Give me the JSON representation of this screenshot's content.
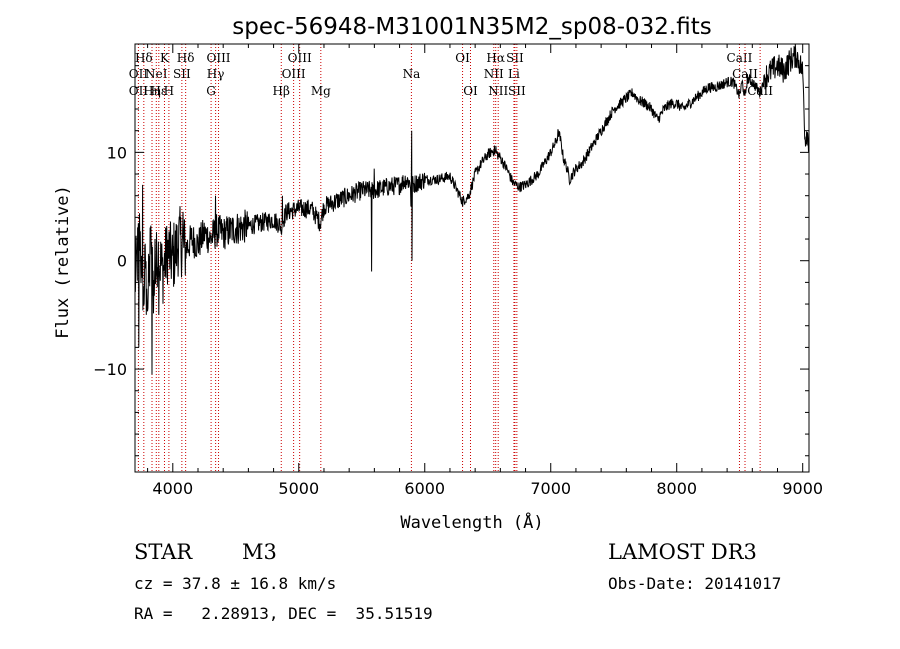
{
  "chart_data": {
    "type": "line",
    "title": "spec-56948-M31001N35M2_sp08-032.fits",
    "xlabel": "Wavelength (Å)",
    "ylabel": "Flux (relative)",
    "xlim": [
      3700,
      9050
    ],
    "ylim": [
      -19.5,
      20
    ],
    "x_ticks": [
      4000,
      5000,
      6000,
      7000,
      8000,
      9000
    ],
    "x_tick_labels": [
      "4000",
      "5000",
      "6000",
      "7000",
      "8000",
      "9000"
    ],
    "y_ticks": [
      -10,
      0,
      10
    ],
    "y_tick_labels": [
      "−10",
      "0",
      "10"
    ],
    "line_color": "#000000",
    "marker_color": "#cc0000",
    "spectrum_anchors": [
      [
        3700,
        -2
      ],
      [
        3740,
        3
      ],
      [
        3760,
        -5
      ],
      [
        3790,
        1
      ],
      [
        3800,
        -4
      ],
      [
        3830,
        2
      ],
      [
        3850,
        -3
      ],
      [
        3880,
        1
      ],
      [
        3920,
        -1
      ],
      [
        3960,
        1
      ],
      [
        4000,
        0
      ],
      [
        4050,
        2
      ],
      [
        4100,
        1
      ],
      [
        4150,
        2
      ],
      [
        4200,
        1.5
      ],
      [
        4250,
        2.5
      ],
      [
        4300,
        2
      ],
      [
        4350,
        2.8
      ],
      [
        4400,
        2.5
      ],
      [
        4500,
        3
      ],
      [
        4600,
        3.2
      ],
      [
        4700,
        3.5
      ],
      [
        4800,
        3.8
      ],
      [
        4860,
        3.2
      ],
      [
        4900,
        4.5
      ],
      [
        5000,
        4.8
      ],
      [
        5100,
        4.8
      ],
      [
        5170,
        3.5
      ],
      [
        5200,
        5
      ],
      [
        5300,
        5.5
      ],
      [
        5400,
        6
      ],
      [
        5500,
        6.5
      ],
      [
        5600,
        6.5
      ],
      [
        5700,
        6.8
      ],
      [
        5800,
        7
      ],
      [
        5850,
        7.5
      ],
      [
        5900,
        7
      ],
      [
        6000,
        7.5
      ],
      [
        6100,
        7.5
      ],
      [
        6200,
        7.8
      ],
      [
        6300,
        5.5
      ],
      [
        6350,
        6
      ],
      [
        6400,
        8
      ],
      [
        6450,
        9
      ],
      [
        6500,
        9.8
      ],
      [
        6550,
        10.2
      ],
      [
        6600,
        9.5
      ],
      [
        6650,
        8.5
      ],
      [
        6700,
        7.2
      ],
      [
        6750,
        6.8
      ],
      [
        6800,
        7
      ],
      [
        6850,
        7.5
      ],
      [
        6900,
        8
      ],
      [
        6950,
        9
      ],
      [
        7000,
        10
      ],
      [
        7050,
        11.2
      ],
      [
        7060,
        12
      ],
      [
        7080,
        11
      ],
      [
        7100,
        9.5
      ],
      [
        7130,
        8.5
      ],
      [
        7150,
        7.5
      ],
      [
        7200,
        8.5
      ],
      [
        7250,
        9
      ],
      [
        7300,
        10
      ],
      [
        7350,
        11
      ],
      [
        7400,
        12
      ],
      [
        7450,
        13
      ],
      [
        7500,
        14
      ],
      [
        7550,
        14.5
      ],
      [
        7600,
        15
      ],
      [
        7650,
        15.5
      ],
      [
        7700,
        14.8
      ],
      [
        7750,
        14.5
      ],
      [
        7800,
        14
      ],
      [
        7850,
        13
      ],
      [
        7900,
        14
      ],
      [
        7950,
        14.5
      ],
      [
        8000,
        14.5
      ],
      [
        8050,
        14
      ],
      [
        8100,
        14.5
      ],
      [
        8150,
        15
      ],
      [
        8200,
        15.5
      ],
      [
        8250,
        16
      ],
      [
        8300,
        16
      ],
      [
        8350,
        16.2
      ],
      [
        8400,
        16.5
      ],
      [
        8450,
        16.5
      ],
      [
        8498,
        15.2
      ],
      [
        8520,
        16.5
      ],
      [
        8542,
        15
      ],
      [
        8560,
        16.8
      ],
      [
        8600,
        16.5
      ],
      [
        8662,
        15.5
      ],
      [
        8700,
        17
      ],
      [
        8750,
        17.5
      ],
      [
        8800,
        18
      ],
      [
        8850,
        17.5
      ],
      [
        8900,
        18.5
      ],
      [
        8950,
        19
      ],
      [
        9000,
        17.5
      ],
      [
        9020,
        11
      ],
      [
        9030,
        12
      ],
      [
        9050,
        11
      ]
    ],
    "spectrum_spikes": [
      [
        3730,
        -8
      ],
      [
        3760,
        7
      ],
      [
        3790,
        -5
      ],
      [
        3820,
        3
      ],
      [
        3835,
        -10.5
      ],
      [
        3858,
        2
      ],
      [
        3890,
        -5
      ],
      [
        4010,
        3.5
      ],
      [
        4080,
        4.5
      ],
      [
        4340,
        6
      ],
      [
        4860,
        2.5
      ],
      [
        4870,
        6
      ],
      [
        5577,
        -1
      ],
      [
        5600,
        8.5
      ],
      [
        5890,
        5
      ],
      [
        5895,
        12
      ],
      [
        5900,
        0
      ],
      [
        6300,
        5
      ],
      [
        6565,
        10.6
      ],
      [
        7060,
        12
      ]
    ],
    "line_markers": [
      {
        "x": 3727,
        "rows": {
          "top": "",
          "mid": "OII",
          "bot": "OII"
        }
      },
      {
        "x": 3770,
        "rows": {
          "top": "Hδ",
          "mid": "",
          "bot": ""
        }
      },
      {
        "x": 3835,
        "rows": {
          "top": "",
          "mid": "",
          "bot": "Hη"
        }
      },
      {
        "x": 3869,
        "rows": {
          "top": "",
          "mid": "NeI",
          "bot": ""
        }
      },
      {
        "x": 3889,
        "rows": {
          "top": "",
          "mid": "",
          "bot": "Hε"
        }
      },
      {
        "x": 3934,
        "rows": {
          "top": "K",
          "mid": "",
          "bot": ""
        }
      },
      {
        "x": 3969,
        "rows": {
          "top": "",
          "mid": "",
          "bot": "H"
        }
      },
      {
        "x": 4072,
        "rows": {
          "top": "",
          "mid": "SII",
          "bot": ""
        }
      },
      {
        "x": 4102,
        "rows": {
          "top": "Hδ",
          "mid": "",
          "bot": ""
        }
      },
      {
        "x": 4304,
        "rows": {
          "top": "",
          "mid": "",
          "bot": "G"
        }
      },
      {
        "x": 4340,
        "rows": {
          "top": "",
          "mid": "Hγ",
          "bot": ""
        }
      },
      {
        "x": 4363,
        "rows": {
          "top": "OIII",
          "mid": "",
          "bot": ""
        }
      },
      {
        "x": 4861,
        "rows": {
          "top": "",
          "mid": "",
          "bot": "Hβ"
        }
      },
      {
        "x": 4959,
        "rows": {
          "top": "",
          "mid": "OIII",
          "bot": ""
        }
      },
      {
        "x": 5007,
        "rows": {
          "top": "OIII",
          "mid": "",
          "bot": ""
        }
      },
      {
        "x": 5175,
        "rows": {
          "top": "",
          "mid": "",
          "bot": "Mg"
        }
      },
      {
        "x": 5894,
        "rows": {
          "top": "",
          "mid": "Na",
          "bot": ""
        }
      },
      {
        "x": 6300,
        "rows": {
          "top": "OI",
          "mid": "",
          "bot": ""
        }
      },
      {
        "x": 6363,
        "rows": {
          "top": "",
          "mid": "",
          "bot": "OI"
        }
      },
      {
        "x": 6548,
        "rows": {
          "top": "",
          "mid": "NII",
          "bot": ""
        }
      },
      {
        "x": 6563,
        "rows": {
          "top": "Hα",
          "mid": "",
          "bot": ""
        }
      },
      {
        "x": 6583,
        "rows": {
          "top": "",
          "mid": "",
          "bot": "NII"
        }
      },
      {
        "x": 6708,
        "rows": {
          "top": "",
          "mid": "Li",
          "bot": ""
        }
      },
      {
        "x": 6716,
        "rows": {
          "top": "SII",
          "mid": "",
          "bot": ""
        }
      },
      {
        "x": 6731,
        "rows": {
          "top": "",
          "mid": "",
          "bot": "SII"
        }
      },
      {
        "x": 8498,
        "rows": {
          "top": "CaII",
          "mid": "",
          "bot": ""
        }
      },
      {
        "x": 8542,
        "rows": {
          "top": "",
          "mid": "CaII",
          "bot": ""
        }
      },
      {
        "x": 8662,
        "rows": {
          "top": "",
          "mid": "",
          "bot": "CaII"
        }
      }
    ]
  },
  "info": {
    "object_class": "STAR",
    "subclass": "M3",
    "survey": "LAMOST DR3",
    "cz_line": "cz = 37.8 ± 16.8 km/s",
    "obs_date_line": "Obs-Date: 20141017",
    "coords_line": "RA =   2.28913, DEC =  35.51519"
  }
}
